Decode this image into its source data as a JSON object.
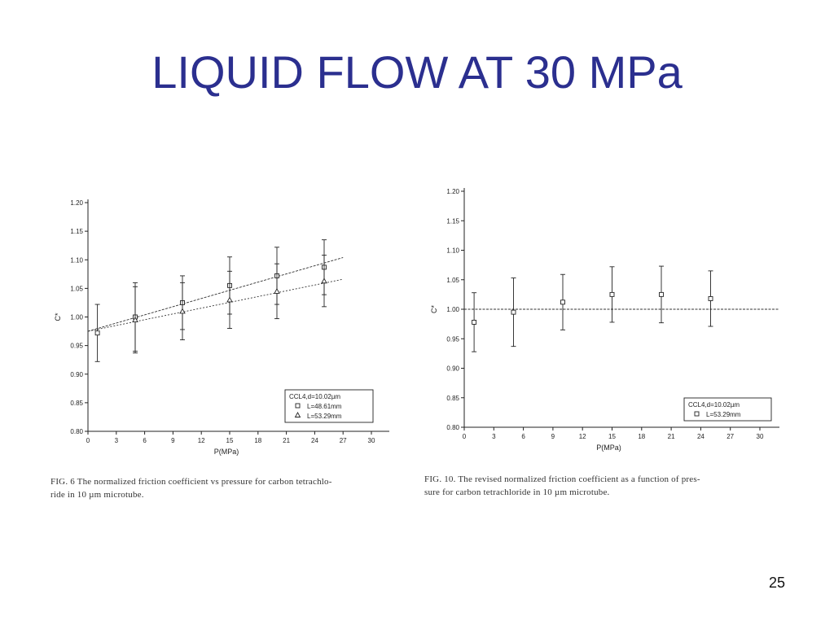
{
  "slide": {
    "title": "LIQUID FLOW AT 30 MPa",
    "page_number": "25"
  },
  "chart_data": [
    {
      "type": "scatter",
      "xlabel": "P(MPa)",
      "ylabel": "C*",
      "xlim": [
        0,
        30
      ],
      "ylim": [
        0.8,
        1.2
      ],
      "xticks": [
        "0",
        "3",
        "6",
        "9",
        "12",
        "15",
        "18",
        "21",
        "24",
        "27",
        "30"
      ],
      "yticks": [
        "0.80",
        "0.85",
        "0.90",
        "0.95",
        "1.00",
        "1.05",
        "1.10",
        "1.15",
        "1.20"
      ],
      "legend": {
        "title": "CCL4,d=10.02µm",
        "position": "bottom-right"
      },
      "series": [
        {
          "name": "L=48.61mm",
          "marker": "square",
          "x": [
            1,
            5,
            10,
            15,
            20,
            25
          ],
          "y": [
            0.972,
            1.0,
            1.025,
            1.055,
            1.072,
            1.087
          ],
          "err": [
            0.05,
            0.06,
            0.047,
            0.05,
            0.05,
            0.048
          ]
        },
        {
          "name": "L=53.29mm",
          "marker": "triangle",
          "x": [
            5,
            10,
            15,
            20,
            25
          ],
          "y": [
            0.995,
            1.01,
            1.03,
            1.045,
            1.063
          ],
          "err": [
            0.058,
            0.05,
            0.05,
            0.048,
            0.045
          ]
        }
      ],
      "fit_lines": [
        {
          "series": "L=48.61mm",
          "x": [
            0,
            27
          ],
          "y": [
            0.975,
            1.104
          ]
        },
        {
          "series": "L=53.29mm",
          "x": [
            0,
            27
          ],
          "y": [
            0.975,
            1.066
          ]
        }
      ],
      "caption": "FIG. 6  The normalized friction coefficient vs pressure for carbon tetrachlo-\nride in 10 µm microtube."
    },
    {
      "type": "scatter",
      "xlabel": "P(MPa)",
      "ylabel": "C*",
      "xlim": [
        0,
        30
      ],
      "ylim": [
        0.8,
        1.2
      ],
      "xticks": [
        "0",
        "3",
        "6",
        "9",
        "12",
        "15",
        "18",
        "21",
        "24",
        "27",
        "30"
      ],
      "yticks": [
        "0.80",
        "0.85",
        "0.90",
        "0.95",
        "1.00",
        "1.05",
        "1.10",
        "1.15",
        "1.20"
      ],
      "legend": {
        "title": "CCL4,d=10.02µm",
        "position": "bottom-right"
      },
      "series": [
        {
          "name": "L=53.29mm",
          "marker": "square",
          "x": [
            1,
            5,
            10,
            15,
            20,
            25
          ],
          "y": [
            0.978,
            0.995,
            1.012,
            1.025,
            1.025,
            1.018
          ],
          "err": [
            0.05,
            0.058,
            0.047,
            0.047,
            0.048,
            0.047
          ]
        }
      ],
      "fit_lines": [
        {
          "series": "reference",
          "x": [
            0,
            33
          ],
          "y": [
            1.0,
            1.0
          ]
        }
      ],
      "caption": "FIG. 10. The revised normalized friction coefficient as a function of pres-\nsure for carbon tetrachloride in 10 µm microtube."
    }
  ]
}
